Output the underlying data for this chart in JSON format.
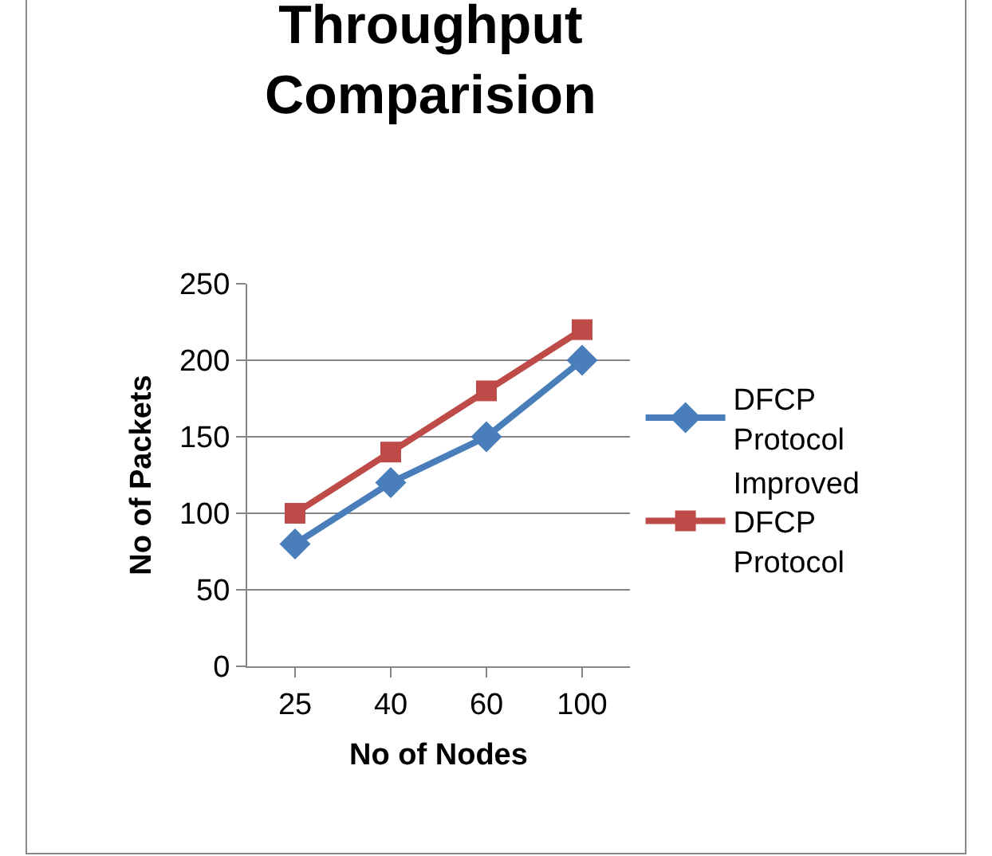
{
  "chart_data": {
    "type": "line",
    "title": "Throughput Comparision",
    "xlabel": "No of Nodes",
    "ylabel": "No of Packets",
    "categories": [
      "25",
      "40",
      "60",
      "100"
    ],
    "series": [
      {
        "name": "DFCP Protocol",
        "color": "#4a7ebb",
        "marker": "diamond",
        "values": [
          80,
          120,
          150,
          200
        ]
      },
      {
        "name": "Improved DFCP Protocol",
        "color": "#be4b48",
        "marker": "square",
        "values": [
          100,
          140,
          180,
          220
        ]
      }
    ],
    "ylim": [
      0,
      250
    ],
    "yticks": [
      0,
      50,
      100,
      150,
      200,
      250
    ],
    "grid": "y",
    "legend": "right"
  }
}
